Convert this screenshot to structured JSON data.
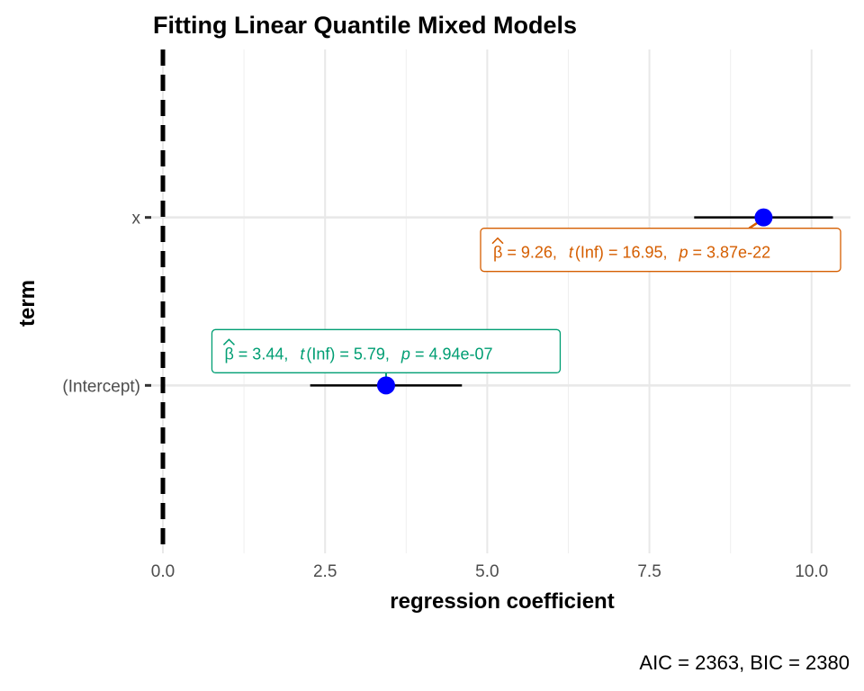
{
  "chart_data": {
    "type": "scatter",
    "title": "Fitting Linear Quantile Mixed Models",
    "xlabel": "regression coefficient",
    "ylabel": "term",
    "caption": "AIC = 2363, BIC = 2380",
    "xlim": [
      -0.25,
      10.6
    ],
    "x_ticks": [
      0.0,
      2.5,
      5.0,
      7.5,
      10.0
    ],
    "x_tick_labels": [
      "0.0",
      "2.5",
      "5.0",
      "7.5",
      "10.0"
    ],
    "categories": [
      "(Intercept)",
      "x"
    ],
    "grid": true,
    "reference_line": {
      "x": 0,
      "style": "dashed"
    },
    "points": [
      {
        "term": "(Intercept)",
        "estimate": 3.44,
        "ci": [
          2.27,
          4.61
        ],
        "color": "#009E73",
        "label": {
          "beta": "= 3.44,",
          "t": "t",
          "df": "(Inf)",
          "t_value": "= 5.79,",
          "p": "p",
          "p_value": "= 4.94e-07"
        }
      },
      {
        "term": "x",
        "estimate": 9.26,
        "ci": [
          8.19,
          10.33
        ],
        "color": "#D55E00",
        "label": {
          "beta": "= 9.26,",
          "t": "t",
          "df": "(Inf)",
          "t_value": "= 16.95,",
          "p": "p",
          "p_value": "= 3.87e-22"
        }
      }
    ],
    "point_color": "#0000FF",
    "hat_symbol": "β"
  }
}
